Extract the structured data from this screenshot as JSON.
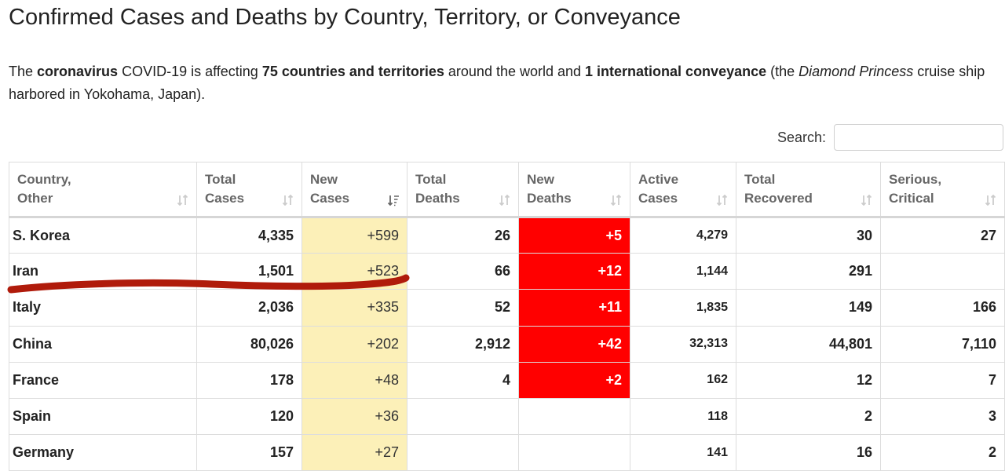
{
  "page": {
    "title": "Confirmed Cases and Deaths by Country, Territory, or Conveyance",
    "intro": {
      "part1": "The ",
      "bold1": "coronavirus",
      "part2": " COVID-19 is affecting ",
      "bold2": "75 countries and territories",
      "part3": " around the world and ",
      "bold3": "1 international conveyance",
      "part4": " (the ",
      "italic1": "Diamond Princess",
      "part5": " cruise ship harbored in Yokohama, Japan)."
    }
  },
  "search": {
    "label": "Search:",
    "value": "",
    "placeholder": ""
  },
  "table": {
    "headers": [
      {
        "line1": "Country,",
        "line2": "Other"
      },
      {
        "line1": "Total",
        "line2": "Cases"
      },
      {
        "line1": "New",
        "line2": "Cases",
        "sorted": true
      },
      {
        "line1": "Total",
        "line2": "Deaths"
      },
      {
        "line1": "New",
        "line2": "Deaths"
      },
      {
        "line1": "Active",
        "line2": "Cases"
      },
      {
        "line1": "Total",
        "line2": "Recovered"
      },
      {
        "line1": "Serious,",
        "line2": "Critical"
      }
    ],
    "rows": [
      {
        "country": "S. Korea",
        "total_cases": "4,335",
        "new_cases": "+599",
        "total_deaths": "26",
        "new_deaths": "+5",
        "active": "4,279",
        "recovered": "30",
        "serious": "27"
      },
      {
        "country": "Iran",
        "total_cases": "1,501",
        "new_cases": "+523",
        "total_deaths": "66",
        "new_deaths": "+12",
        "active": "1,144",
        "recovered": "291",
        "serious": ""
      },
      {
        "country": "Italy",
        "total_cases": "2,036",
        "new_cases": "+335",
        "total_deaths": "52",
        "new_deaths": "+11",
        "active": "1,835",
        "recovered": "149",
        "serious": "166"
      },
      {
        "country": "China",
        "total_cases": "80,026",
        "new_cases": "+202",
        "total_deaths": "2,912",
        "new_deaths": "+42",
        "active": "32,313",
        "recovered": "44,801",
        "serious": "7,110"
      },
      {
        "country": "France",
        "total_cases": "178",
        "new_cases": "+48",
        "total_deaths": "4",
        "new_deaths": "+2",
        "active": "162",
        "recovered": "12",
        "serious": "7"
      },
      {
        "country": "Spain",
        "total_cases": "120",
        "new_cases": "+36",
        "total_deaths": "",
        "new_deaths": "",
        "active": "118",
        "recovered": "2",
        "serious": "3"
      },
      {
        "country": "Germany",
        "total_cases": "157",
        "new_cases": "+27",
        "total_deaths": "",
        "new_deaths": "",
        "active": "141",
        "recovered": "16",
        "serious": "2"
      }
    ]
  },
  "colors": {
    "new_cases_bg": "#fcf0b8",
    "new_deaths_bg": "#ff0000",
    "annotation_stroke": "#b01b0b"
  },
  "icons": {
    "sort": "sort-icon",
    "sort_active": "sort-desc-icon"
  }
}
